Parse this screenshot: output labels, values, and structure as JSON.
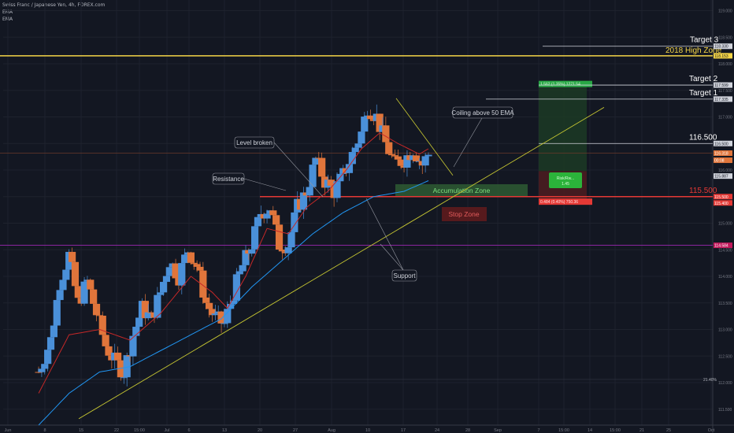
{
  "header": {
    "title": "Swiss Franc / Japanese Yen, 4h, FOREX.com",
    "indicators": [
      "EMA",
      "EMA"
    ]
  },
  "colors": {
    "background": "#131722",
    "grid": "#1e222d",
    "up_candle": "#4a90d9",
    "down_candle": "#e0753b",
    "ema_fast": "#c62828",
    "ema_slow": "#2196f3",
    "trendline": "#c8c832",
    "high_zone": "#f5d547",
    "stop_line": "#e53935",
    "accumulation": "#2e5a32",
    "stop_zone": "#5a1a1e",
    "target_box": "#1c3a24",
    "stop_box": "#4a1c20",
    "purple_line": "#9c27b0"
  },
  "chart_data": {
    "type": "candlestick",
    "symbol": "CHFJPY",
    "timeframe": "4h",
    "ylim": [
      111.2,
      119.2
    ],
    "y_ticks": [
      "111.500",
      "112.000",
      "112.500",
      "113.000",
      "113.500",
      "114.000",
      "114.500",
      "115.000",
      "115.500",
      "116.000",
      "116.500",
      "117.000",
      "117.500",
      "118.000",
      "118.500",
      "119.000"
    ],
    "x_ticks": [
      "Jun",
      "8",
      "15",
      "22",
      "15:00",
      "Jul",
      "6",
      "13",
      "20",
      "27",
      "Aug",
      "10",
      "17",
      "24",
      "28",
      "Sep",
      "7",
      "15:00",
      "14",
      "15:00",
      "21",
      "25",
      "Oct"
    ],
    "price_path": [
      [
        0,
        112.2
      ],
      [
        4,
        112.8
      ],
      [
        7,
        113.9
      ],
      [
        10,
        114.4
      ],
      [
        13,
        113.5
      ],
      [
        16,
        113.9
      ],
      [
        19,
        113.3
      ],
      [
        22,
        112.7
      ],
      [
        25,
        112.4
      ],
      [
        28,
        112.2
      ],
      [
        31,
        112.9
      ],
      [
        34,
        113.4
      ],
      [
        37,
        113.2
      ],
      [
        40,
        113.7
      ],
      [
        43,
        114.3
      ],
      [
        46,
        114.0
      ],
      [
        49,
        114.5
      ],
      [
        52,
        114.2
      ],
      [
        55,
        113.5
      ],
      [
        58,
        113.2
      ],
      [
        61,
        113.1
      ],
      [
        64,
        113.7
      ],
      [
        67,
        114.2
      ],
      [
        70,
        114.6
      ],
      [
        73,
        115.2
      ],
      [
        76,
        115.3
      ],
      [
        79,
        114.6
      ],
      [
        82,
        114.6
      ],
      [
        85,
        115.3
      ],
      [
        88,
        115.6
      ],
      [
        91,
        116.2
      ],
      [
        94,
        115.8
      ],
      [
        97,
        115.6
      ],
      [
        100,
        115.9
      ],
      [
        103,
        116.3
      ],
      [
        106,
        116.7
      ],
      [
        108,
        117.2
      ],
      [
        111,
        117.0
      ],
      [
        114,
        116.5
      ],
      [
        117,
        116.1
      ],
      [
        120,
        116.2
      ],
      [
        123,
        116.4
      ],
      [
        126,
        116.1
      ],
      [
        128,
        116.3
      ]
    ],
    "ema_fast": [
      [
        0,
        111.8
      ],
      [
        10,
        112.9
      ],
      [
        20,
        113.0
      ],
      [
        30,
        112.8
      ],
      [
        40,
        113.3
      ],
      [
        50,
        114.0
      ],
      [
        57,
        113.7
      ],
      [
        62,
        113.4
      ],
      [
        68,
        114.0
      ],
      [
        75,
        114.9
      ],
      [
        82,
        114.8
      ],
      [
        88,
        115.3
      ],
      [
        95,
        115.6
      ],
      [
        101,
        116.0
      ],
      [
        106,
        116.4
      ],
      [
        112,
        116.7
      ],
      [
        118,
        116.5
      ],
      [
        125,
        116.3
      ],
      [
        128,
        116.4
      ]
    ],
    "ema_slow": [
      [
        0,
        111.2
      ],
      [
        10,
        111.8
      ],
      [
        20,
        112.2
      ],
      [
        30,
        112.3
      ],
      [
        40,
        112.6
      ],
      [
        50,
        112.9
      ],
      [
        60,
        113.2
      ],
      [
        70,
        113.8
      ],
      [
        80,
        114.3
      ],
      [
        90,
        114.8
      ],
      [
        100,
        115.2
      ],
      [
        110,
        115.5
      ],
      [
        120,
        115.6
      ],
      [
        128,
        115.8
      ]
    ],
    "horizontal_levels": [
      {
        "price": 118.33,
        "label": "Target 3",
        "tag": "118.330"
      },
      {
        "price": 118.15,
        "label": "2018 High Zone",
        "tag": "118.153"
      },
      {
        "price": 117.599,
        "label": "Target 2",
        "tag": "117.599"
      },
      {
        "price": 117.335,
        "label": "Target 1",
        "tag": "117.335"
      },
      {
        "price": 116.5,
        "label": "116.500",
        "tag": "116.500"
      },
      {
        "price": 115.5,
        "label": "115.500",
        "tag": "115.500"
      },
      {
        "price": 114.584,
        "label": "",
        "tag": "114.584"
      }
    ],
    "annotations": [
      {
        "text": "Level broken"
      },
      {
        "text": "Resistance"
      },
      {
        "text": "Coiling above 50 EMA"
      },
      {
        "text": "Support"
      },
      {
        "text": "Accumulation Zone"
      },
      {
        "text": "Stop Zone"
      }
    ],
    "price_tags": [
      "116.318",
      "00:08",
      "115.887",
      "115.500",
      "115.400"
    ],
    "extra_tick": "21.40%",
    "position_tool": {
      "target_text": "1.562 (1.35%) 1271.54",
      "ratio_text_1": "Risk/Rw...",
      "ratio_text_2": "1.45",
      "stop_text": "0.484 (0.40%) 750.36"
    }
  }
}
